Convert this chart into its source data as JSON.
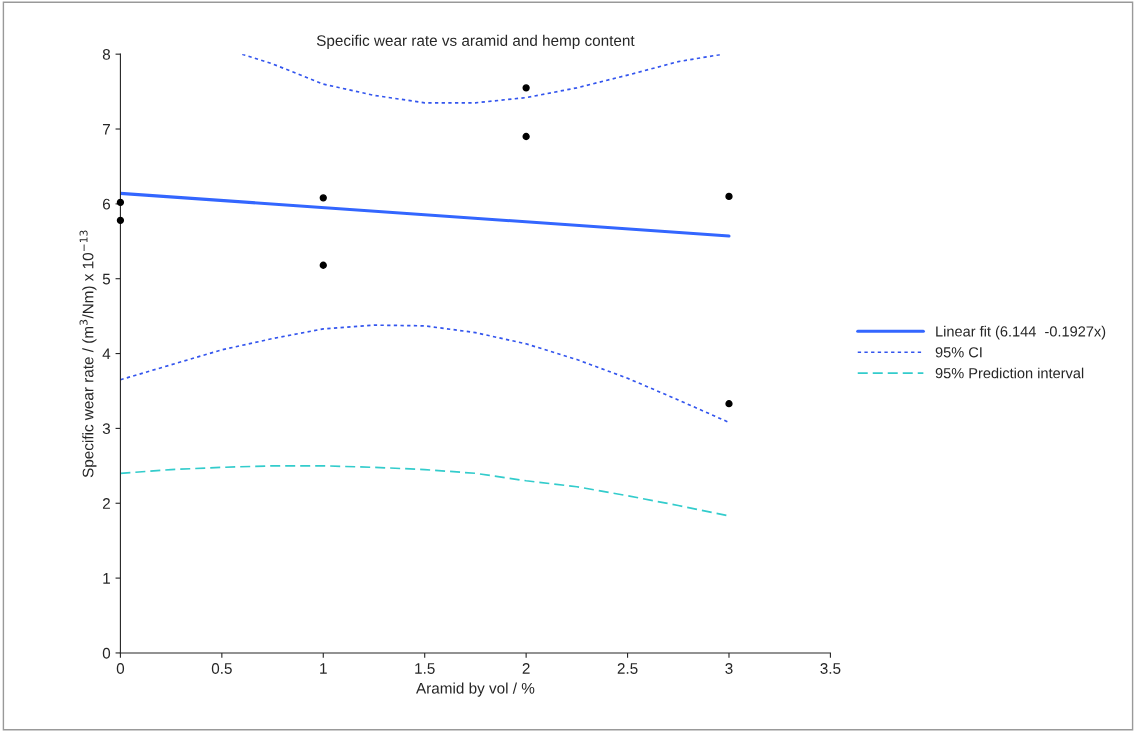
{
  "chart_data": {
    "type": "line",
    "title": "Specific wear rate vs aramid and hemp content",
    "xlabel": "Aramid by vol / %",
    "ylabel": "Specific wear rate / (m$^{3}$/Nm) x 10$^{−13}$",
    "xlim": [
      0,
      3.5
    ],
    "xticks": [
      0,
      0.5,
      1,
      1.5,
      2,
      2.5,
      3,
      3.5
    ],
    "ylim": [
      0,
      8
    ],
    "yticks": [
      0,
      1,
      2,
      3,
      4,
      5,
      6,
      7,
      8
    ],
    "grid": false,
    "legend": "right",
    "series": [
      {
        "type": "scatter",
        "color": "#000000",
        "marker": "circle",
        "x": [
          0,
          0,
          1,
          1,
          2,
          2,
          3,
          3
        ],
        "values": [
          6.02,
          5.78,
          6.08,
          5.18,
          7.55,
          6.9,
          6.1,
          3.33
        ]
      },
      {
        "name": "Linear fit (6.144  -0.1927x)",
        "color": "#3366ff",
        "line_style": "solid",
        "x": [
          0,
          3
        ],
        "values": [
          6.14,
          5.57
        ]
      },
      {
        "name": "95% CI",
        "color": "#3355ee",
        "line_style": "dotted",
        "x": [
          0.6,
          0.75,
          1.0,
          1.25,
          1.5,
          1.75,
          2.0,
          2.25,
          2.5,
          2.75,
          2.97
        ],
        "values": [
          8.0,
          7.87,
          7.6,
          7.45,
          7.35,
          7.35,
          7.42,
          7.55,
          7.72,
          7.9,
          8.0
        ]
      },
      {
        "color": "#3355ee",
        "line_style": "dotted",
        "x": [
          0,
          0.25,
          0.5,
          0.75,
          1.0,
          1.25,
          1.5,
          1.75,
          2.0,
          2.25,
          2.5,
          2.75,
          3.0
        ],
        "values": [
          3.65,
          3.85,
          4.05,
          4.2,
          4.33,
          4.38,
          4.37,
          4.28,
          4.13,
          3.92,
          3.67,
          3.38,
          3.08
        ]
      },
      {
        "name": "95% Prediction interval",
        "color": "#33cccc",
        "line_style": "dashed",
        "x": [
          0,
          0.25,
          0.5,
          0.75,
          1.0,
          1.25,
          1.5,
          1.75,
          2.0,
          2.25,
          2.5,
          2.75,
          3.0
        ],
        "values": [
          2.4,
          2.45,
          2.48,
          2.5,
          2.5,
          2.48,
          2.45,
          2.4,
          2.3,
          2.22,
          2.1,
          1.97,
          1.83
        ]
      }
    ]
  }
}
